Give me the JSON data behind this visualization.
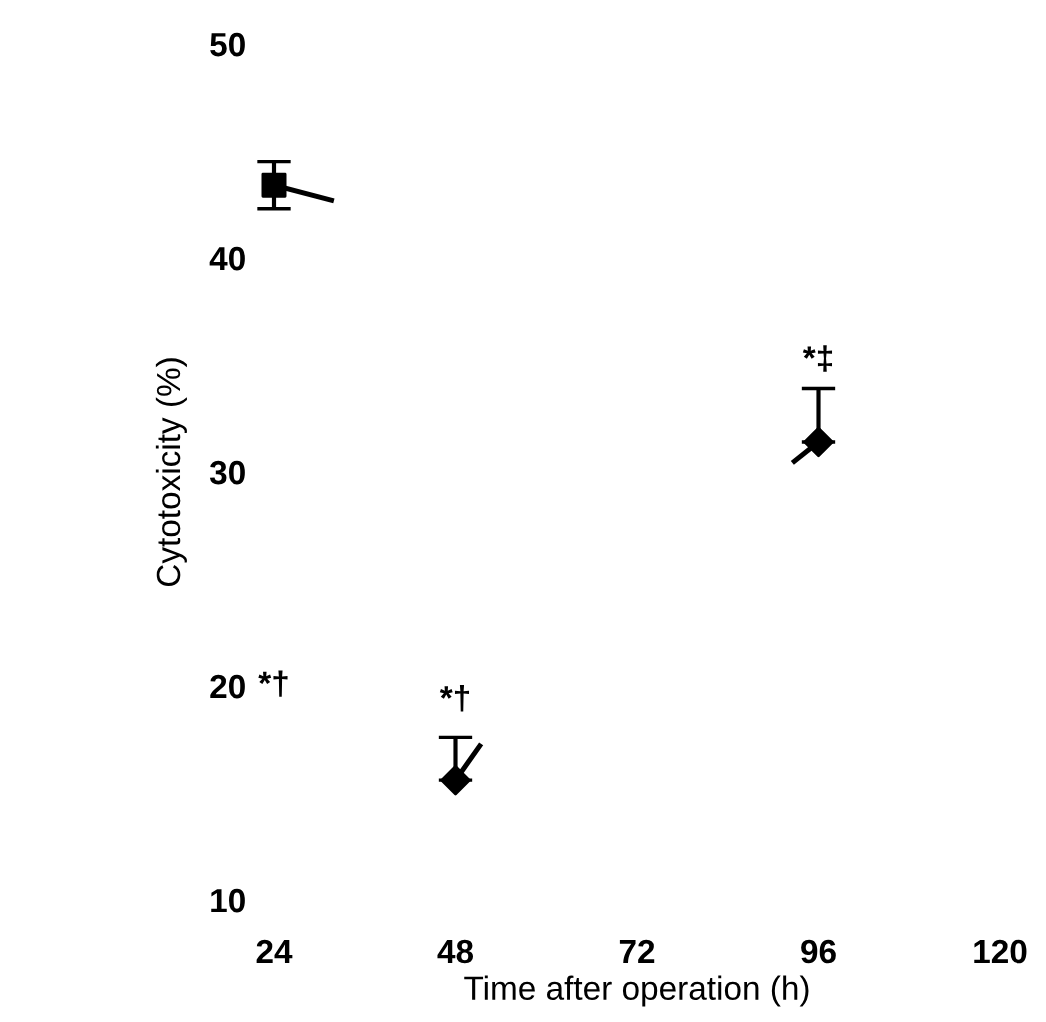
{
  "chart_data": {
    "type": "scatter",
    "xlabel": "Time after operation (h)",
    "ylabel": "Cytotoxicity (%)",
    "xlim": [
      24,
      120
    ],
    "ylim": [
      10,
      50
    ],
    "xticks": [
      24,
      48,
      72,
      96,
      120
    ],
    "yticks": [
      10,
      20,
      30,
      40,
      50
    ],
    "grid": false,
    "legend": false,
    "series": [
      {
        "type": "line",
        "color": "#000000",
        "x": [
          24,
          31.6
        ],
        "values": [
          43.4,
          42.7
        ]
      },
      {
        "type": "line",
        "color": "#000000",
        "x": [
          48,
          51.2
        ],
        "values": [
          15.6,
          17.2
        ]
      },
      {
        "type": "line",
        "color": "#000000",
        "x": [
          96,
          92.8
        ],
        "values": [
          31.4,
          30.5
        ]
      },
      {
        "marker": "square",
        "color": "#000000",
        "x": [
          24
        ],
        "values": [
          43.4
        ],
        "errors": [
          1.1
        ]
      },
      {
        "marker": "diamond",
        "color": "#000000",
        "x": [
          48,
          96
        ],
        "values": [
          15.6,
          31.4
        ],
        "errors": [
          [
            15.6,
            17.6
          ],
          [
            31.4,
            33.9
          ]
        ]
      }
    ],
    "annotations": [
      "*†",
      "*†",
      "*‡"
    ]
  }
}
